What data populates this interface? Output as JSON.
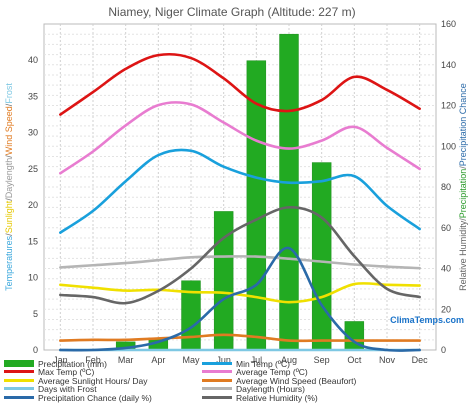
{
  "chart_data": {
    "type": "bar",
    "title": "Niamey, Niger Climate Graph (Altitude: 227 m)",
    "categories": [
      "Jan",
      "Feb",
      "Mar",
      "Apr",
      "May",
      "Jun",
      "Jul",
      "Aug",
      "Sep",
      "Oct",
      "Nov",
      "Dec"
    ],
    "ylabel_left": [
      {
        "text": "Temperatures",
        "color": "#3aa7dc"
      },
      {
        "text": "/",
        "color": "#777777"
      },
      {
        "text": "Sunlight",
        "color": "#e5c800"
      },
      {
        "text": "/",
        "color": "#777777"
      },
      {
        "text": "Daylength",
        "color": "#9a9a9a"
      },
      {
        "text": "/",
        "color": "#777777"
      },
      {
        "text": "Wind Speed",
        "color": "#e07b22"
      },
      {
        "text": "/",
        "color": "#777777"
      },
      {
        "text": "Frost",
        "color": "#7ec8e3"
      }
    ],
    "ylabel_right": [
      {
        "text": "Relative Humidity",
        "color": "#666666"
      },
      {
        "text": "/",
        "color": "#777777"
      },
      {
        "text": "Precipitation",
        "color": "#2a9a2a"
      },
      {
        "text": "/",
        "color": "#777777"
      },
      {
        "text": "Precipitation Chance",
        "color": "#2a6aa8"
      }
    ],
    "left_axis": {
      "ylim": [
        0,
        45
      ],
      "ticks": [
        0,
        5,
        10,
        15,
        20,
        25,
        30,
        35,
        40
      ]
    },
    "right_axis": {
      "ylim": [
        0,
        160
      ],
      "ticks": [
        0,
        20,
        40,
        60,
        80,
        100,
        120,
        140,
        160
      ]
    },
    "grid": true,
    "series": [
      {
        "name": "Precipitation (mm)",
        "kind": "bar",
        "axis": "right",
        "color": "#22aa22",
        "values": [
          0,
          0,
          4,
          6,
          34,
          68,
          142,
          155,
          92,
          14,
          0,
          0
        ]
      },
      {
        "name": "Min Temp (ºC)",
        "kind": "line",
        "axis": "left",
        "color": "#19a0dc",
        "values": [
          16.2,
          19.2,
          23.3,
          26.9,
          27.5,
          25.3,
          23.8,
          23.1,
          23.3,
          24.0,
          19.9,
          16.7
        ]
      },
      {
        "name": "Max Temp (ºC)",
        "kind": "line",
        "axis": "left",
        "color": "#dd1414",
        "values": [
          32.5,
          35.6,
          38.8,
          40.7,
          40.3,
          37.5,
          34.0,
          33.0,
          34.5,
          37.7,
          35.9,
          33.3
        ]
      },
      {
        "name": "Average Temp (ºC)",
        "kind": "line",
        "axis": "left",
        "color": "#e87cd0",
        "values": [
          24.4,
          27.4,
          31.0,
          33.8,
          33.9,
          31.4,
          28.9,
          27.8,
          28.9,
          30.8,
          27.9,
          25.0
        ]
      },
      {
        "name": "Average Sunlight Hours/ Day",
        "kind": "line",
        "axis": "left",
        "color": "#f0e000",
        "values": [
          9.0,
          8.6,
          8.2,
          8.3,
          8.0,
          7.9,
          7.3,
          6.6,
          7.3,
          9.1,
          9.0,
          8.9
        ]
      },
      {
        "name": "Average Wind Speed (Beaufort)",
        "kind": "line",
        "axis": "left",
        "color": "#e07b22",
        "values": [
          1.3,
          1.4,
          1.4,
          1.6,
          1.8,
          2.1,
          1.8,
          1.3,
          1.3,
          1.3,
          1.3,
          1.3
        ]
      },
      {
        "name": "Days with Frost",
        "kind": "line",
        "axis": "left",
        "color": "#7ec8e3",
        "values": [
          0,
          0,
          0,
          0,
          0,
          0,
          0,
          0,
          0,
          0,
          0,
          0
        ]
      },
      {
        "name": "Daylength (Hours)",
        "kind": "line",
        "axis": "left",
        "color": "#b5b5b5",
        "values": [
          11.4,
          11.7,
          12.0,
          12.4,
          12.8,
          12.9,
          12.9,
          12.6,
          12.2,
          11.8,
          11.5,
          11.3
        ]
      },
      {
        "name": "Precipitation Chance (daily %)",
        "kind": "line",
        "axis": "right",
        "color": "#2a6aa8",
        "values": [
          0,
          0,
          1,
          4,
          11,
          25,
          32,
          50,
          22,
          4,
          0,
          0
        ]
      },
      {
        "name": "Relative Humidity (%)",
        "kind": "line",
        "axis": "right",
        "color": "#666666",
        "values": [
          27,
          26,
          23,
          29,
          40,
          55,
          64,
          70,
          65,
          46,
          30,
          26
        ]
      }
    ]
  },
  "legend": [
    {
      "label": "Precipitation (mm)",
      "color": "#22aa22",
      "kind": "bar"
    },
    {
      "label": "Min Temp (ºC)",
      "color": "#19a0dc",
      "kind": "line"
    },
    {
      "label": "Max Temp (ºC)",
      "color": "#dd1414",
      "kind": "line"
    },
    {
      "label": "Average Temp (ºC)",
      "color": "#e87cd0",
      "kind": "line"
    },
    {
      "label": "Average Sunlight Hours/ Day",
      "color": "#f0e000",
      "kind": "line"
    },
    {
      "label": "Average Wind Speed (Beaufort)",
      "color": "#e07b22",
      "kind": "line"
    },
    {
      "label": "Days with Frost",
      "color": "#7ec8e3",
      "kind": "line"
    },
    {
      "label": "Daylength (Hours)",
      "color": "#b5b5b5",
      "kind": "line"
    },
    {
      "label": "Precipitation Chance (daily %)",
      "color": "#2a6aa8",
      "kind": "line"
    },
    {
      "label": "Relative Humidity (%)",
      "color": "#666666",
      "kind": "line"
    }
  ],
  "brand": "ClimaTemps.com"
}
